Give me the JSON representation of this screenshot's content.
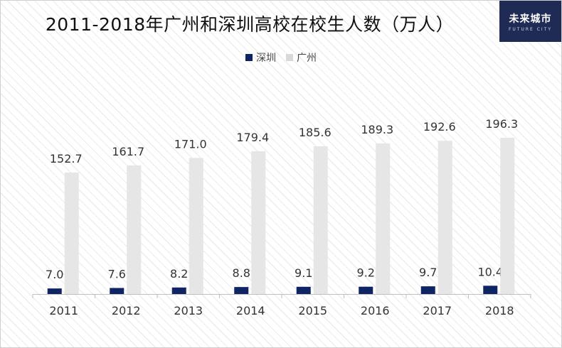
{
  "chart_data": {
    "type": "bar",
    "title": "2011-2018年广州和深圳高校在校生人数（万人）",
    "categories": [
      "2011",
      "2012",
      "2013",
      "2014",
      "2015",
      "2016",
      "2017",
      "2018"
    ],
    "series": [
      {
        "name": "深圳",
        "color": "#0f2563",
        "values": [
          7.0,
          7.6,
          8.2,
          8.8,
          9.1,
          9.2,
          9.7,
          10.4
        ],
        "labels": [
          "7.0",
          "7.6",
          "8.2",
          "8.8",
          "9.1",
          "9.2",
          "9.7",
          "10.4"
        ]
      },
      {
        "name": "广州",
        "color": "#e6e6e6",
        "values": [
          152.7,
          161.7,
          171.0,
          179.4,
          185.6,
          189.3,
          192.6,
          196.3
        ],
        "labels": [
          "152.7",
          "161.7",
          "171.0",
          "179.4",
          "185.6",
          "189.3",
          "192.6",
          "196.3"
        ]
      }
    ],
    "ylim": [
      0,
      210
    ],
    "legend_position": "top-center",
    "grid": false
  },
  "logo": {
    "main": "未来城市",
    "sub": "FUTURE CITY"
  }
}
